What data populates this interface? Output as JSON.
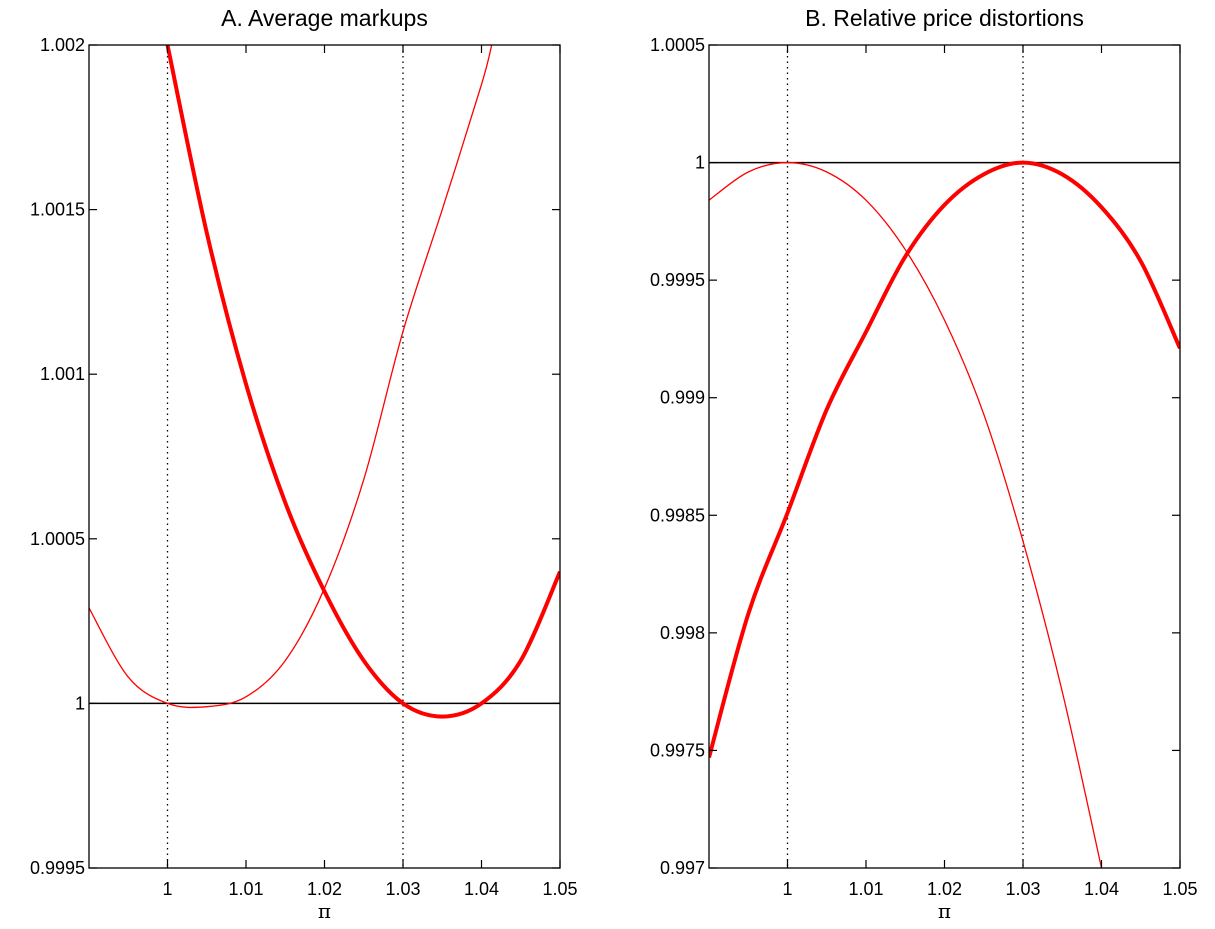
{
  "colors": {
    "curve": "#ff0000",
    "axis": "#000000",
    "reference": "#000000"
  },
  "chart_data": [
    {
      "type": "line",
      "title": "A. Average markups",
      "xlabel": "π",
      "ylabel": "",
      "xlim": [
        0.99,
        1.05
      ],
      "ylim": [
        0.9995,
        1.002
      ],
      "xticks": [
        1,
        1.01,
        1.02,
        1.03,
        1.04,
        1.05
      ],
      "xtick_labels": [
        "1",
        "1.01",
        "1.02",
        "1.03",
        "1.04",
        "1.05"
      ],
      "yticks": [
        0.9995,
        1,
        1.0005,
        1.001,
        1.0015,
        1.002
      ],
      "ytick_labels": [
        "0.9995",
        "1",
        "1.0005",
        "1.001",
        "1.0015",
        "1.002"
      ],
      "reference_hline": 1,
      "reference_vlines": [
        1,
        1.03
      ],
      "grid": false,
      "legend": "none",
      "series": [
        {
          "style": "thin",
          "x": [
            0.99,
            0.995,
            1.0,
            1.005,
            1.01,
            1.015,
            1.02,
            1.025,
            1.03,
            1.035,
            1.04,
            1.0413
          ],
          "y": [
            1.00029,
            1.00008,
            1.0,
            0.99999,
            1.00002,
            1.00013,
            1.00035,
            1.00068,
            1.00113,
            1.0015,
            1.00188,
            1.002
          ]
        },
        {
          "style": "thick",
          "x": [
            1.0,
            1.005,
            1.01,
            1.015,
            1.02,
            1.025,
            1.03,
            1.035,
            1.04,
            1.045,
            1.05
          ],
          "y": [
            1.002,
            1.00143,
            1.00097,
            1.00061,
            1.00034,
            1.00013,
            1.0,
            0.99996,
            1.0,
            1.00013,
            1.0004
          ]
        }
      ]
    },
    {
      "type": "line",
      "title": "B. Relative price distortions",
      "xlabel": "π",
      "ylabel": "",
      "xlim": [
        0.99,
        1.05
      ],
      "ylim": [
        0.997,
        1.0005
      ],
      "xticks": [
        1,
        1.01,
        1.02,
        1.03,
        1.04,
        1.05
      ],
      "xtick_labels": [
        "1",
        "1.01",
        "1.02",
        "1.03",
        "1.04",
        "1.05"
      ],
      "yticks": [
        0.997,
        0.9975,
        0.998,
        0.9985,
        0.999,
        0.9995,
        1,
        1.0005
      ],
      "ytick_labels": [
        "0.997",
        "0.9975",
        "0.998",
        "0.9985",
        "0.999",
        "0.9995",
        "1",
        "1.0005"
      ],
      "reference_hline": 1,
      "reference_vlines": [
        1,
        1.03
      ],
      "grid": false,
      "legend": "none",
      "series": [
        {
          "style": "thin",
          "x": [
            0.99,
            0.995,
            1.0,
            1.005,
            1.01,
            1.015,
            1.02,
            1.025,
            1.03,
            1.035,
            1.04
          ],
          "y": [
            0.99984,
            0.99996,
            1.0,
            0.99996,
            0.99984,
            0.99963,
            0.99933,
            0.99893,
            0.99839,
            0.99775,
            0.997
          ]
        },
        {
          "style": "thick",
          "x": [
            0.99,
            0.995,
            1.0,
            1.005,
            1.01,
            1.015,
            1.02,
            1.025,
            1.03,
            1.035,
            1.04,
            1.045,
            1.05
          ],
          "y": [
            0.99747,
            0.99808,
            0.99851,
            0.99895,
            0.99928,
            0.9996,
            0.99982,
            0.99995,
            1.0,
            0.99995,
            0.99981,
            0.99958,
            0.99921
          ]
        }
      ]
    }
  ]
}
